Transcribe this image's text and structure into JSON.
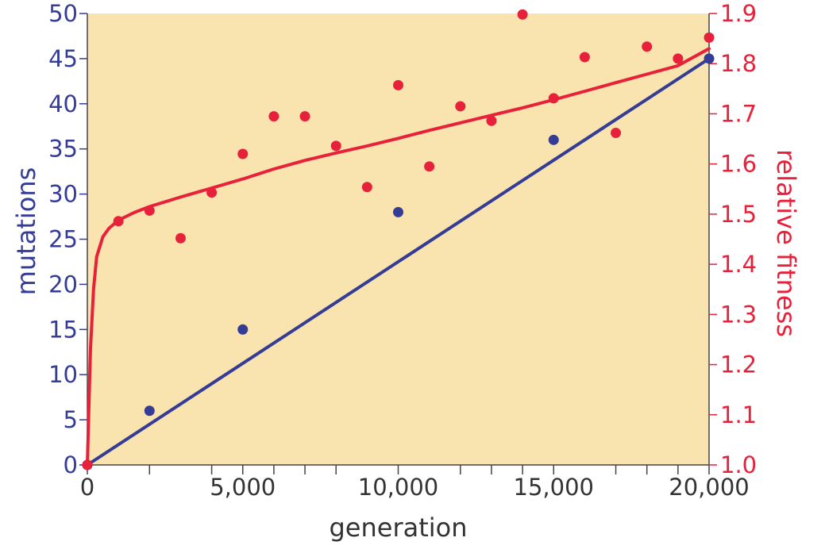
{
  "colors": {
    "plot_background": "#f9e4b0",
    "mutations": "#343c96",
    "fitness": "#e8213a",
    "axis": "#444444",
    "x_text": "#333333"
  },
  "chart_data": {
    "type": "scatter",
    "title": "",
    "xlabel": "generation",
    "ylabel_left": "mutations",
    "ylabel_right": "relative fitness",
    "xlim": [
      0,
      20000
    ],
    "ylim_left": [
      0,
      50
    ],
    "ylim_right": [
      1.0,
      1.9
    ],
    "x_ticks": [
      0,
      5000,
      10000,
      15000,
      20000
    ],
    "x_minor_ticks": [
      2000,
      4000,
      6000,
      7000,
      8000,
      12000,
      13000,
      14000,
      17000,
      18000,
      19000
    ],
    "x_tick_labels": [
      "0",
      "5,000",
      "10,000",
      "15,000",
      "20,000"
    ],
    "y_left_ticks": [
      0,
      5,
      10,
      15,
      20,
      25,
      30,
      35,
      40,
      45,
      50
    ],
    "y_left_tick_labels": [
      "0",
      "5",
      "10",
      "15",
      "20",
      "25",
      "30",
      "35",
      "40",
      "45",
      "50"
    ],
    "y_right_ticks": [
      1.0,
      1.1,
      1.2,
      1.3,
      1.4,
      1.5,
      1.6,
      1.7,
      1.8,
      1.9
    ],
    "y_right_tick_labels": [
      "1.0",
      "1.1",
      "1.2",
      "1.3",
      "1.4",
      "1.5",
      "1.6",
      "1.7",
      "1.8",
      "1.9"
    ],
    "grid": false,
    "series": [
      {
        "axis": "left",
        "kind": "points",
        "x": [
          0,
          2000,
          5000,
          10000,
          15000,
          20000
        ],
        "y": [
          0,
          6,
          15,
          28,
          36,
          45
        ]
      },
      {
        "axis": "left",
        "kind": "fit-line",
        "x": [
          0,
          20000
        ],
        "y": [
          0,
          45
        ]
      },
      {
        "axis": "right",
        "kind": "points",
        "x": [
          0,
          1000,
          2000,
          3000,
          4000,
          5000,
          6000,
          7000,
          8000,
          9000,
          10000,
          11000,
          12000,
          13000,
          14000,
          15000,
          16000,
          17000,
          18000,
          19000,
          20000
        ],
        "y": [
          1.0,
          1.486,
          1.507,
          1.452,
          1.543,
          1.62,
          1.695,
          1.695,
          1.636,
          1.554,
          1.757,
          1.595,
          1.715,
          1.686,
          1.898,
          1.731,
          1.813,
          1.662,
          1.834,
          1.81,
          1.852
        ]
      },
      {
        "axis": "right",
        "kind": "fit-line",
        "x": [
          0,
          100,
          200,
          300,
          500,
          700,
          1000,
          1500,
          2000,
          3000,
          4000,
          5000,
          6000,
          7000,
          8000,
          9000,
          10000,
          11000,
          12000,
          13000,
          14000,
          15000,
          16000,
          17000,
          18000,
          19000,
          20000
        ],
        "y": [
          1.0,
          1.23,
          1.35,
          1.415,
          1.455,
          1.472,
          1.488,
          1.503,
          1.515,
          1.534,
          1.552,
          1.57,
          1.59,
          1.607,
          1.622,
          1.636,
          1.651,
          1.667,
          1.682,
          1.697,
          1.712,
          1.728,
          1.745,
          1.762,
          1.779,
          1.796,
          1.83
        ]
      }
    ]
  }
}
